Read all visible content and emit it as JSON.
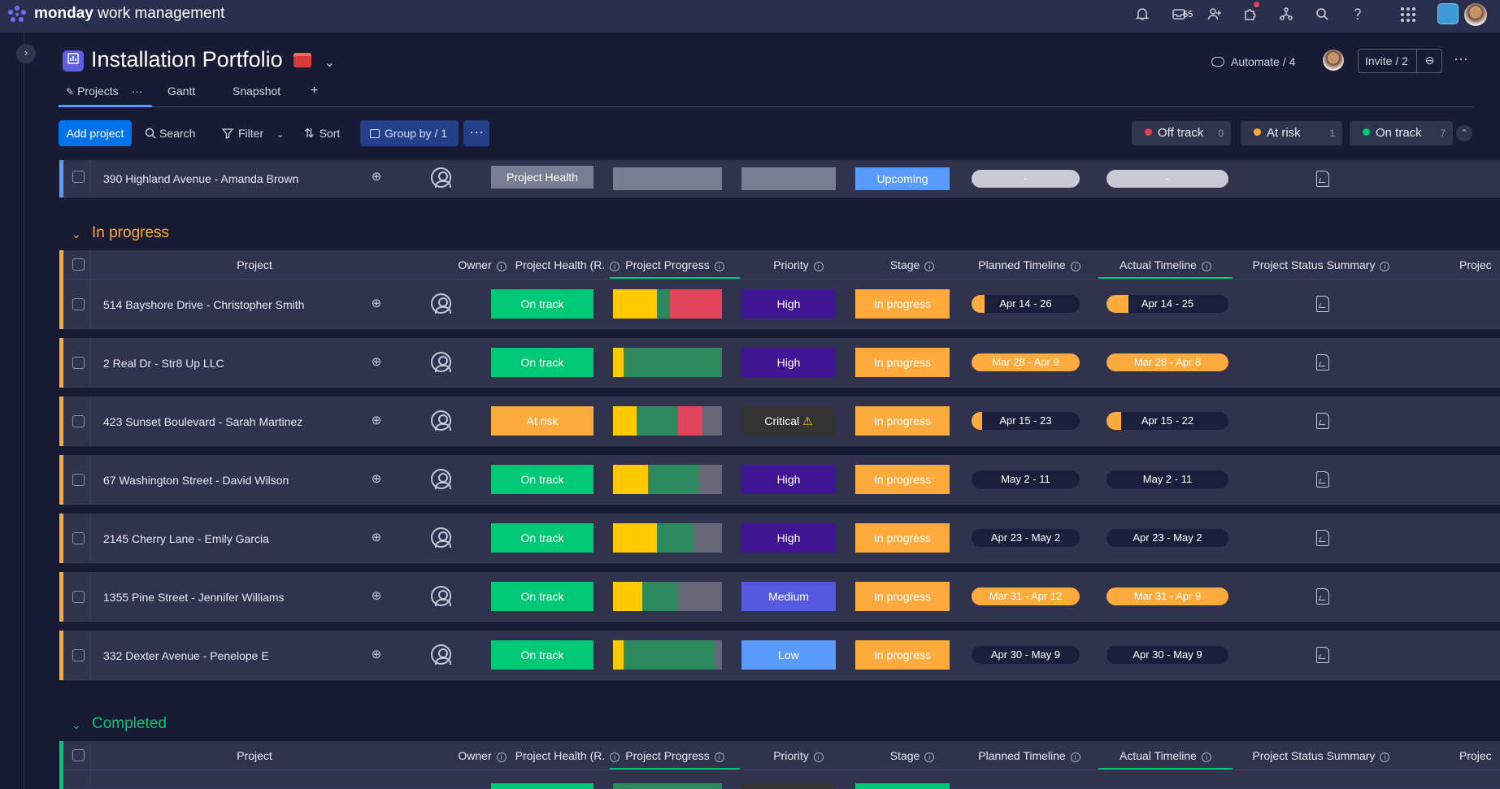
{
  "app": {
    "brand_bold": "monday",
    "brand_rest": "work management",
    "inbox_count": "55"
  },
  "board": {
    "title": "Installation Portfolio",
    "tabs": [
      {
        "label": "Projects",
        "more": "···"
      },
      {
        "label": "Gantt"
      },
      {
        "label": "Snapshot"
      },
      {
        "label": "+"
      }
    ],
    "automate": "Automate / 4",
    "invite": "Invite / 2"
  },
  "toolbar": {
    "add_project": "Add project",
    "search": "Search",
    "filter": "Filter",
    "sort": "Sort",
    "group_by": "Group by / 1",
    "more": "···"
  },
  "health_filters": [
    {
      "label": "Off track",
      "count": "0",
      "color": "#e2445c"
    },
    {
      "label": "At risk",
      "count": "1",
      "color": "#fdab3d"
    },
    {
      "label": "On track",
      "count": "7",
      "color": "#00c875"
    }
  ],
  "colors": {
    "on_track": "#00c875",
    "at_risk": "#fdab3d",
    "high": "#401694",
    "critical": "#333333",
    "medium": "#5559df",
    "low": "#579bfc",
    "in_progress": "#fdab3d",
    "upcoming": "#579bfc",
    "progress_yellow": "#ffcb00",
    "progress_green": "#2e8b5f",
    "progress_red": "#e2445c",
    "progress_gray": "#676879"
  },
  "prev_group_row": {
    "project": "390 Highland Avenue - Amanda Brown",
    "health": "Project Health",
    "stage": "Upcoming",
    "planned": "-",
    "actual": "-"
  },
  "columns": {
    "project": "Project",
    "owner": "Owner",
    "health": "Project Health (R.",
    "progress": "Project Progress",
    "priority": "Priority",
    "stage": "Stage",
    "planned": "Planned Timeline",
    "actual": "Actual Timeline",
    "summary": "Project Status Summary",
    "extra": "Projec"
  },
  "groups": [
    {
      "title": "In progress",
      "color": "#fdab3d"
    },
    {
      "title": "Completed",
      "color": "#00c875"
    }
  ],
  "rows": [
    {
      "project": "514 Bayshore Drive - Christopher Smith",
      "health": "On track",
      "priority": "High",
      "stage": "In progress",
      "planned": "Apr 14 - 26",
      "actual": "Apr 14 - 25",
      "planned_fill": 0.12,
      "actual_fill": 0.18,
      "progress": [
        0.4,
        0.12,
        0.48,
        0
      ]
    },
    {
      "project": "2 Real Dr - Str8 Up LLC",
      "health": "On track",
      "priority": "High",
      "stage": "In progress",
      "planned": "Mar 28 - Apr 9",
      "actual": "Mar 28 - Apr 8",
      "planned_fill": 1,
      "actual_fill": 1,
      "progress": [
        0.1,
        0.9,
        0,
        0
      ]
    },
    {
      "project": "423 Sunset Boulevard - Sarah Martinez",
      "health": "At risk",
      "priority": "Critical",
      "priority_icon": "⚠",
      "stage": "In progress",
      "planned": "Apr 15 - 23",
      "actual": "Apr 15 - 22",
      "planned_fill": 0.1,
      "actual_fill": 0.12,
      "progress": [
        0.22,
        0.38,
        0.22,
        0.18
      ]
    },
    {
      "project": "67 Washington Street - David Wilson",
      "health": "On track",
      "priority": "High",
      "stage": "In progress",
      "planned": "May 2 - 11",
      "actual": "May 2 - 11",
      "planned_fill": 0,
      "actual_fill": 0,
      "progress": [
        0.32,
        0.47,
        0,
        0.21
      ]
    },
    {
      "project": "2145 Cherry Lane - Emily Garcia",
      "health": "On track",
      "priority": "High",
      "stage": "In progress",
      "planned": "Apr 23 - May 2",
      "actual": "Apr 23 - May 2",
      "planned_fill": 0,
      "actual_fill": 0,
      "progress": [
        0.4,
        0.35,
        0,
        0.25
      ]
    },
    {
      "project": "1355 Pine Street - Jennifer Williams",
      "health": "On track",
      "priority": "Medium",
      "stage": "In progress",
      "planned": "Mar 31 - Apr 12",
      "actual": "Mar 31 - Apr 9",
      "planned_fill": 1,
      "actual_fill": 1,
      "progress": [
        0.27,
        0.33,
        0,
        0.4
      ]
    },
    {
      "project": "332 Dexter Avenue - Penelope E",
      "health": "On track",
      "priority": "Low",
      "stage": "In progress",
      "planned": "Apr 30 - May 9",
      "actual": "Apr 30 - May 9",
      "planned_fill": 0,
      "actual_fill": 0,
      "progress": [
        0.1,
        0.83,
        0,
        0.07
      ]
    }
  ]
}
